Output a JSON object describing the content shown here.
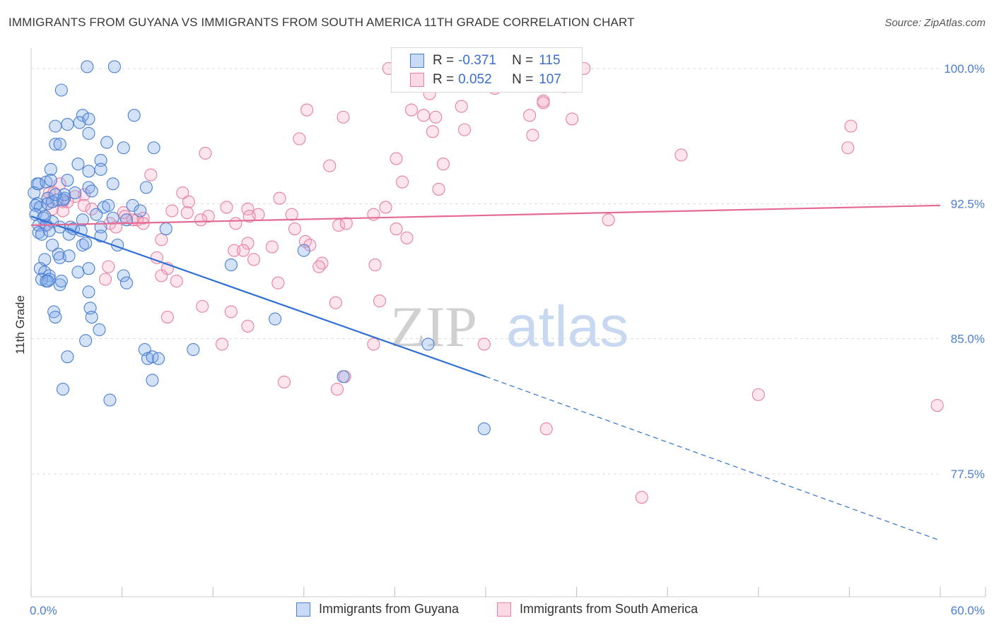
{
  "title": "IMMIGRANTS FROM GUYANA VS IMMIGRANTS FROM SOUTH AMERICA 11TH GRADE CORRELATION CHART",
  "source": "Source: ZipAtlas.com",
  "watermark": {
    "zip": "ZIP",
    "atlas": "atlas"
  },
  "colors": {
    "blue": "#4a7fd1",
    "blue_fill": "rgba(132,172,235,0.35)",
    "blue_line": "#2f6fd6",
    "pink": "#e87fa0",
    "pink_fill": "rgba(244,170,196,0.30)",
    "pink_line": "#e46b95",
    "grid": "#d9d9d9",
    "tick_text": "#4a7fd1"
  },
  "legend_top": {
    "rows": [
      {
        "r_label": "R =",
        "r_value": "-0.371",
        "n_label": "N =",
        "n_value": "115"
      },
      {
        "r_label": "R =",
        "r_value": "0.052",
        "n_label": "N =",
        "n_value": "107"
      }
    ]
  },
  "legend_bottom": {
    "series1": "Immigrants from Guyana",
    "series2": "Immigrants from South America"
  },
  "chart_data": {
    "type": "scatter",
    "ylabel": "11th Grade",
    "xlabel": "",
    "x_tick_labels": [
      "0.0%",
      "60.0%"
    ],
    "y_tick_labels": [
      "77.5%",
      "85.0%",
      "92.5%",
      "100.0%"
    ],
    "y_ticks": [
      77.5,
      85.0,
      92.5,
      100.0
    ],
    "xlim": [
      0,
      60
    ],
    "ylim": [
      70.5,
      101.2
    ],
    "grid": true,
    "legend": "top-center",
    "series": [
      {
        "name": "Immigrants from Guyana",
        "stats": {
          "R": -0.371,
          "N": 115
        },
        "trend": {
          "x0": 0,
          "y0": 91.8,
          "x1": 30,
          "y1": 82.9,
          "dashed_to_x": 60,
          "dashed_to_y": 73.8
        },
        "points": [
          [
            3.7,
            100.1
          ],
          [
            5.5,
            100.1
          ],
          [
            2.0,
            98.8
          ],
          [
            3.4,
            97.4
          ],
          [
            6.8,
            97.4
          ],
          [
            1.6,
            96.8
          ],
          [
            2.4,
            96.9
          ],
          [
            3.2,
            97.0
          ],
          [
            3.8,
            97.2
          ],
          [
            3.8,
            96.4
          ],
          [
            1.6,
            95.8
          ],
          [
            1.9,
            95.8
          ],
          [
            5.0,
            95.9
          ],
          [
            6.1,
            95.6
          ],
          [
            8.1,
            95.6
          ],
          [
            3.1,
            94.7
          ],
          [
            4.6,
            94.9
          ],
          [
            1.3,
            94.4
          ],
          [
            3.8,
            94.3
          ],
          [
            4.6,
            94.4
          ],
          [
            0.4,
            93.6
          ],
          [
            0.5,
            93.6
          ],
          [
            1.0,
            93.7
          ],
          [
            1.3,
            93.8
          ],
          [
            2.4,
            93.8
          ],
          [
            3.8,
            93.4
          ],
          [
            5.4,
            93.6
          ],
          [
            7.6,
            93.4
          ],
          [
            0.2,
            93.1
          ],
          [
            1.1,
            92.8
          ],
          [
            1.7,
            92.7
          ],
          [
            2.2,
            92.8
          ],
          [
            2.2,
            93.0
          ],
          [
            4.0,
            93.2
          ],
          [
            0.4,
            92.5
          ],
          [
            0.3,
            92.4
          ],
          [
            0.6,
            92.3
          ],
          [
            1.1,
            92.5
          ],
          [
            1.4,
            92.6
          ],
          [
            2.1,
            92.7
          ],
          [
            4.8,
            92.3
          ],
          [
            5.1,
            92.4
          ],
          [
            6.7,
            92.4
          ],
          [
            7.2,
            92.1
          ],
          [
            0.3,
            91.9
          ],
          [
            0.8,
            91.7
          ],
          [
            1.4,
            91.5
          ],
          [
            3.4,
            91.6
          ],
          [
            4.3,
            91.9
          ],
          [
            5.4,
            91.7
          ],
          [
            6.3,
            91.6
          ],
          [
            0.5,
            91.3
          ],
          [
            1.0,
            91.3
          ],
          [
            1.9,
            91.2
          ],
          [
            2.6,
            91.2
          ],
          [
            2.8,
            91.1
          ],
          [
            4.6,
            91.2
          ],
          [
            8.9,
            91.1
          ],
          [
            0.5,
            90.9
          ],
          [
            0.7,
            90.8
          ],
          [
            1.2,
            91.0
          ],
          [
            2.5,
            90.8
          ],
          [
            3.3,
            91.0
          ],
          [
            4.6,
            90.7
          ],
          [
            1.4,
            90.2
          ],
          [
            3.4,
            90.2
          ],
          [
            3.6,
            90.3
          ],
          [
            5.7,
            90.2
          ],
          [
            0.9,
            89.4
          ],
          [
            1.8,
            89.7
          ],
          [
            1.9,
            89.5
          ],
          [
            2.5,
            89.6
          ],
          [
            0.6,
            88.9
          ],
          [
            0.9,
            88.7
          ],
          [
            1.2,
            88.5
          ],
          [
            1.2,
            88.3
          ],
          [
            0.7,
            88.3
          ],
          [
            1.0,
            88.2
          ],
          [
            1.1,
            88.2
          ],
          [
            1.9,
            88.0
          ],
          [
            2.0,
            88.2
          ],
          [
            3.1,
            88.7
          ],
          [
            3.8,
            88.9
          ],
          [
            6.1,
            88.5
          ],
          [
            6.3,
            88.1
          ],
          [
            13.2,
            89.1
          ],
          [
            18.0,
            89.9
          ],
          [
            3.8,
            87.6
          ],
          [
            3.9,
            86.7
          ],
          [
            4.0,
            86.2
          ],
          [
            1.5,
            86.5
          ],
          [
            1.6,
            86.2
          ],
          [
            4.5,
            85.5
          ],
          [
            3.6,
            84.9
          ],
          [
            7.5,
            84.4
          ],
          [
            7.7,
            83.9
          ],
          [
            8.0,
            84.0
          ],
          [
            8.4,
            83.9
          ],
          [
            2.4,
            84.0
          ],
          [
            16.1,
            86.1
          ],
          [
            8.0,
            82.7
          ],
          [
            20.6,
            82.9
          ],
          [
            2.1,
            82.2
          ],
          [
            5.2,
            81.6
          ],
          [
            26.2,
            84.7
          ],
          [
            29.9,
            80.0
          ],
          [
            10.7,
            84.4
          ],
          [
            0.9,
            91.8
          ],
          [
            1.6,
            93.0
          ],
          [
            2.9,
            93.1
          ]
        ]
      },
      {
        "name": "Immigrants from South America",
        "stats": {
          "R": 0.052,
          "N": 107
        },
        "trend": {
          "x0": 0,
          "y0": 91.3,
          "x1": 60,
          "y1": 92.4
        },
        "points": [
          [
            23.6,
            100.0
          ],
          [
            28.0,
            99.9
          ],
          [
            36.5,
            100.0
          ],
          [
            27.6,
            99.6
          ],
          [
            26.3,
            98.6
          ],
          [
            33.8,
            98.2
          ],
          [
            30.6,
            98.9
          ],
          [
            35.2,
            99.0
          ],
          [
            28.4,
            97.9
          ],
          [
            33.8,
            98.1
          ],
          [
            25.1,
            97.7
          ],
          [
            26.7,
            97.3
          ],
          [
            18.2,
            97.7
          ],
          [
            20.6,
            97.3
          ],
          [
            25.9,
            97.4
          ],
          [
            32.9,
            97.4
          ],
          [
            28.6,
            96.6
          ],
          [
            26.5,
            96.5
          ],
          [
            35.7,
            97.2
          ],
          [
            54.1,
            96.8
          ],
          [
            33.1,
            96.3
          ],
          [
            17.7,
            96.1
          ],
          [
            11.5,
            95.3
          ],
          [
            24.1,
            95.0
          ],
          [
            27.2,
            94.7
          ],
          [
            42.9,
            95.2
          ],
          [
            53.9,
            95.6
          ],
          [
            19.7,
            94.6
          ],
          [
            7.9,
            94.1
          ],
          [
            24.5,
            93.7
          ],
          [
            1.9,
            93.6
          ],
          [
            26.9,
            93.3
          ],
          [
            1.2,
            93.1
          ],
          [
            1.5,
            93.1
          ],
          [
            3.5,
            93.0
          ],
          [
            10.0,
            93.1
          ],
          [
            1.1,
            92.8
          ],
          [
            2.9,
            92.9
          ],
          [
            16.4,
            92.8
          ],
          [
            2.1,
            92.6
          ],
          [
            2.4,
            92.6
          ],
          [
            10.4,
            92.6
          ],
          [
            3.5,
            92.4
          ],
          [
            12.9,
            92.3
          ],
          [
            1.4,
            92.2
          ],
          [
            2.1,
            92.1
          ],
          [
            4.0,
            92.2
          ],
          [
            9.3,
            92.1
          ],
          [
            14.3,
            92.2
          ],
          [
            23.4,
            92.3
          ],
          [
            6.1,
            92.0
          ],
          [
            10.3,
            92.0
          ],
          [
            17.2,
            91.9
          ],
          [
            22.6,
            91.9
          ],
          [
            6.2,
            91.8
          ],
          [
            7.4,
            91.7
          ],
          [
            11.7,
            91.8
          ],
          [
            15.0,
            91.9
          ],
          [
            6.7,
            91.6
          ],
          [
            7.0,
            91.6
          ],
          [
            11.2,
            91.6
          ],
          [
            14.4,
            91.8
          ],
          [
            38.1,
            91.6
          ],
          [
            5.2,
            91.4
          ],
          [
            7.4,
            91.4
          ],
          [
            13.5,
            91.4
          ],
          [
            20.3,
            91.3
          ],
          [
            20.8,
            91.4
          ],
          [
            0.9,
            91.3
          ],
          [
            5.6,
            91.2
          ],
          [
            17.4,
            91.1
          ],
          [
            24.1,
            91.1
          ],
          [
            24.8,
            90.6
          ],
          [
            8.6,
            90.5
          ],
          [
            18.1,
            90.4
          ],
          [
            14.3,
            90.3
          ],
          [
            15.9,
            90.1
          ],
          [
            13.4,
            89.9
          ],
          [
            14.0,
            89.9
          ],
          [
            18.4,
            90.2
          ],
          [
            8.3,
            89.5
          ],
          [
            14.7,
            89.4
          ],
          [
            19.2,
            89.2
          ],
          [
            5.1,
            89.0
          ],
          [
            9.0,
            88.9
          ],
          [
            19.0,
            89.0
          ],
          [
            22.7,
            89.1
          ],
          [
            8.6,
            88.5
          ],
          [
            4.9,
            88.3
          ],
          [
            16.3,
            88.1
          ],
          [
            9.6,
            88.2
          ],
          [
            20.1,
            87.0
          ],
          [
            23.0,
            87.1
          ],
          [
            11.3,
            86.8
          ],
          [
            13.2,
            86.5
          ],
          [
            9.0,
            86.2
          ],
          [
            14.3,
            85.7
          ],
          [
            12.6,
            84.7
          ],
          [
            22.6,
            84.7
          ],
          [
            29.9,
            84.7
          ],
          [
            16.7,
            82.6
          ],
          [
            20.7,
            82.9
          ],
          [
            20.2,
            82.2
          ],
          [
            48.0,
            81.9
          ],
          [
            59.8,
            81.3
          ],
          [
            34.0,
            80.0
          ],
          [
            40.3,
            76.2
          ]
        ]
      }
    ]
  }
}
